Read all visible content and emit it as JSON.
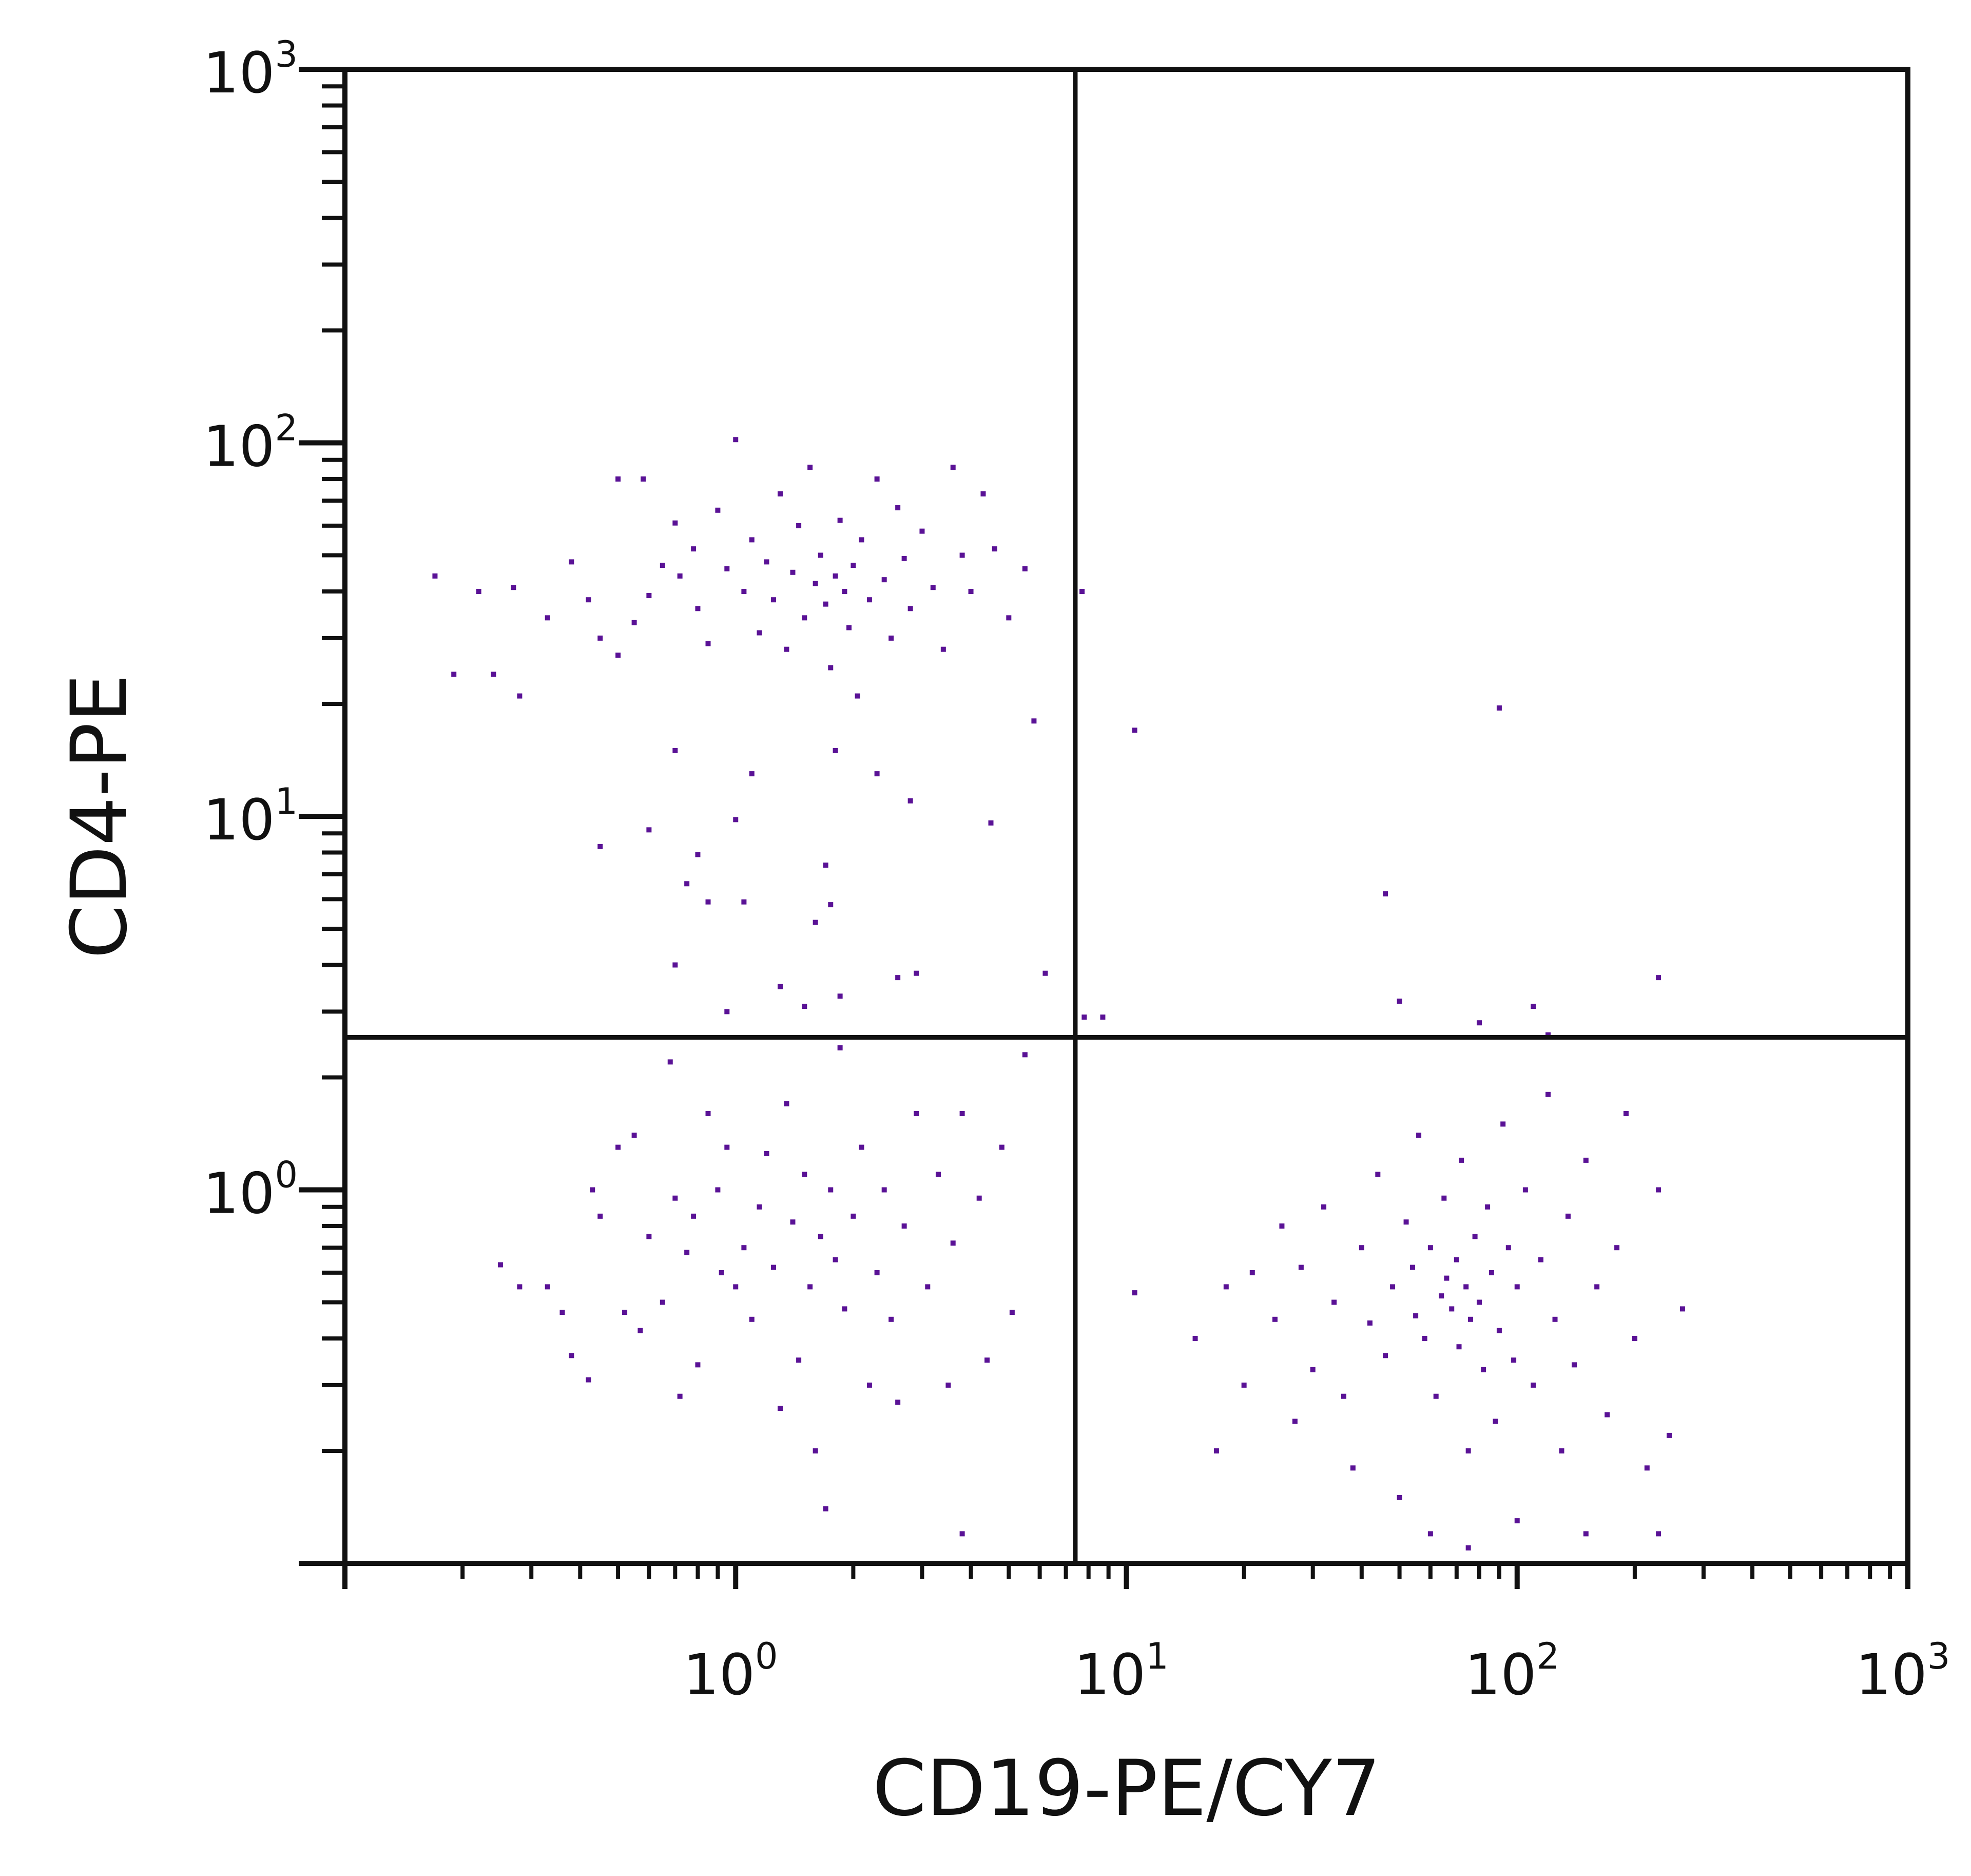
{
  "chart_data": {
    "type": "scatter",
    "title": "",
    "xlabel": "CD19-PE/CY7",
    "ylabel": "CD4-PE",
    "xscale": "log",
    "yscale": "log",
    "xlim": [
      0.1,
      1000
    ],
    "ylim": [
      0.1,
      1000
    ],
    "xticks": [
      {
        "base": "10",
        "exp": "0",
        "value": 1
      },
      {
        "base": "10",
        "exp": "1",
        "value": 10
      },
      {
        "base": "10",
        "exp": "2",
        "value": 100
      },
      {
        "base": "10",
        "exp": "3",
        "value": 1000
      }
    ],
    "yticks": [
      {
        "base": "10",
        "exp": "0",
        "value": 1
      },
      {
        "base": "10",
        "exp": "1",
        "value": 10
      },
      {
        "base": "10",
        "exp": "2",
        "value": 100
      },
      {
        "base": "10",
        "exp": "3",
        "value": 1000
      }
    ],
    "grid": false,
    "quadrant_gates": {
      "x": 7.4,
      "y": 2.56
    },
    "point_color": "#5a1296",
    "points": [
      [
        0.1,
        33
      ],
      [
        0.17,
        44
      ],
      [
        0.22,
        40
      ],
      [
        0.27,
        41
      ],
      [
        0.19,
        24
      ],
      [
        0.24,
        24
      ],
      [
        0.28,
        21
      ],
      [
        0.33,
        34
      ],
      [
        0.38,
        48
      ],
      [
        0.42,
        38
      ],
      [
        0.45,
        30
      ],
      [
        0.5,
        27
      ],
      [
        0.5,
        80
      ],
      [
        0.58,
        80
      ],
      [
        0.55,
        33
      ],
      [
        0.6,
        39
      ],
      [
        0.65,
        47
      ],
      [
        0.7,
        61
      ],
      [
        0.72,
        44
      ],
      [
        0.78,
        52
      ],
      [
        0.8,
        36
      ],
      [
        0.85,
        29
      ],
      [
        0.9,
        66
      ],
      [
        0.95,
        46
      ],
      [
        1.0,
        102
      ],
      [
        1.05,
        40
      ],
      [
        1.1,
        55
      ],
      [
        1.15,
        31
      ],
      [
        1.2,
        48
      ],
      [
        1.25,
        38
      ],
      [
        1.3,
        73
      ],
      [
        1.35,
        28
      ],
      [
        1.4,
        45
      ],
      [
        1.45,
        60
      ],
      [
        1.5,
        34
      ],
      [
        1.55,
        86
      ],
      [
        1.6,
        42
      ],
      [
        1.65,
        50
      ],
      [
        1.7,
        37
      ],
      [
        1.75,
        25
      ],
      [
        1.8,
        44
      ],
      [
        1.85,
        62
      ],
      [
        1.9,
        40
      ],
      [
        1.95,
        32
      ],
      [
        2.0,
        47
      ],
      [
        2.05,
        21
      ],
      [
        2.1,
        55
      ],
      [
        2.2,
        38
      ],
      [
        2.3,
        80
      ],
      [
        2.4,
        43
      ],
      [
        2.5,
        30
      ],
      [
        2.6,
        67
      ],
      [
        2.7,
        49
      ],
      [
        2.8,
        36
      ],
      [
        3.0,
        58
      ],
      [
        3.2,
        41
      ],
      [
        3.4,
        28
      ],
      [
        3.6,
        86
      ],
      [
        3.8,
        50
      ],
      [
        4.0,
        40
      ],
      [
        4.3,
        73
      ],
      [
        4.6,
        52
      ],
      [
        5.0,
        34
      ],
      [
        5.5,
        46
      ],
      [
        5.8,
        18
      ],
      [
        0.7,
        15
      ],
      [
        1.1,
        13
      ],
      [
        1.8,
        15
      ],
      [
        2.3,
        13
      ],
      [
        2.8,
        11
      ],
      [
        4.5,
        9.6
      ],
      [
        1.0,
        9.8
      ],
      [
        0.45,
        8.3
      ],
      [
        0.6,
        9.2
      ],
      [
        0.8,
        7.9
      ],
      [
        0.75,
        6.6
      ],
      [
        1.7,
        7.4
      ],
      [
        1.75,
        5.8
      ],
      [
        1.6,
        5.2
      ],
      [
        0.85,
        5.9
      ],
      [
        1.05,
        5.9
      ],
      [
        0.7,
        4.0
      ],
      [
        1.3,
        3.5
      ],
      [
        1.5,
        3.1
      ],
      [
        0.95,
        3.0
      ],
      [
        1.85,
        3.3
      ],
      [
        2.6,
        3.7
      ],
      [
        2.9,
        3.8
      ],
      [
        6.2,
        3.8
      ],
      [
        7.7,
        40
      ],
      [
        10.5,
        17
      ],
      [
        90,
        19.5
      ],
      [
        46,
        6.2
      ],
      [
        230,
        3.7
      ],
      [
        7.8,
        2.9
      ],
      [
        8.7,
        2.9
      ],
      [
        50,
        3.2
      ],
      [
        80,
        2.8
      ],
      [
        110,
        3.1
      ],
      [
        120,
        2.6
      ],
      [
        0.25,
        0.63
      ],
      [
        0.28,
        0.55
      ],
      [
        0.33,
        0.55
      ],
      [
        0.36,
        0.47
      ],
      [
        0.38,
        0.36
      ],
      [
        0.42,
        0.31
      ],
      [
        0.43,
        1.0
      ],
      [
        0.45,
        0.85
      ],
      [
        0.5,
        1.3
      ],
      [
        0.52,
        0.47
      ],
      [
        0.55,
        1.4
      ],
      [
        0.57,
        0.42
      ],
      [
        0.6,
        0.75
      ],
      [
        0.65,
        0.5
      ],
      [
        0.68,
        2.2
      ],
      [
        0.7,
        0.95
      ],
      [
        0.72,
        0.28
      ],
      [
        0.75,
        0.68
      ],
      [
        0.78,
        0.85
      ],
      [
        0.8,
        0.34
      ],
      [
        0.85,
        1.6
      ],
      [
        0.9,
        1.0
      ],
      [
        0.92,
        0.6
      ],
      [
        0.95,
        1.3
      ],
      [
        1.0,
        0.55
      ],
      [
        1.05,
        0.7
      ],
      [
        1.1,
        0.45
      ],
      [
        1.15,
        0.9
      ],
      [
        1.2,
        1.25
      ],
      [
        1.25,
        0.62
      ],
      [
        1.3,
        0.26
      ],
      [
        1.35,
        1.7
      ],
      [
        1.4,
        0.82
      ],
      [
        1.45,
        0.35
      ],
      [
        1.5,
        1.1
      ],
      [
        1.55,
        0.55
      ],
      [
        1.6,
        0.2
      ],
      [
        1.65,
        0.75
      ],
      [
        1.7,
        0.14
      ],
      [
        1.75,
        1.0
      ],
      [
        1.8,
        0.65
      ],
      [
        1.85,
        2.4
      ],
      [
        1.9,
        0.48
      ],
      [
        2.0,
        0.85
      ],
      [
        2.1,
        1.3
      ],
      [
        2.2,
        0.3
      ],
      [
        2.3,
        0.6
      ],
      [
        2.4,
        1.0
      ],
      [
        2.5,
        0.45
      ],
      [
        2.6,
        0.27
      ],
      [
        2.7,
        0.8
      ],
      [
        2.9,
        1.6
      ],
      [
        3.1,
        0.55
      ],
      [
        3.3,
        1.1
      ],
      [
        3.5,
        0.3
      ],
      [
        3.6,
        0.72
      ],
      [
        3.8,
        1.6
      ],
      [
        4.2,
        0.95
      ],
      [
        4.4,
        0.35
      ],
      [
        4.8,
        1.3
      ],
      [
        5.1,
        0.47
      ],
      [
        5.5,
        2.3
      ],
      [
        3.8,
        0.12
      ],
      [
        10.5,
        0.53
      ],
      [
        15,
        0.4
      ],
      [
        17,
        0.2
      ],
      [
        18,
        0.55
      ],
      [
        20,
        0.3
      ],
      [
        21,
        0.6
      ],
      [
        24,
        0.45
      ],
      [
        25,
        0.8
      ],
      [
        27,
        0.24
      ],
      [
        28,
        0.62
      ],
      [
        30,
        0.33
      ],
      [
        32,
        0.9
      ],
      [
        34,
        0.5
      ],
      [
        36,
        0.28
      ],
      [
        38,
        0.18
      ],
      [
        40,
        0.7
      ],
      [
        42,
        0.44
      ],
      [
        44,
        1.1
      ],
      [
        46,
        0.36
      ],
      [
        48,
        0.55
      ],
      [
        50,
        0.15
      ],
      [
        52,
        0.82
      ],
      [
        54,
        0.62
      ],
      [
        55,
        0.46
      ],
      [
        56,
        1.4
      ],
      [
        58,
        0.4
      ],
      [
        60,
        0.7
      ],
      [
        62,
        0.28
      ],
      [
        64,
        0.52
      ],
      [
        65,
        0.95
      ],
      [
        66,
        0.58
      ],
      [
        68,
        0.48
      ],
      [
        70,
        0.65
      ],
      [
        71,
        0.38
      ],
      [
        72,
        1.2
      ],
      [
        74,
        0.55
      ],
      [
        75,
        0.2
      ],
      [
        76,
        0.45
      ],
      [
        78,
        0.75
      ],
      [
        80,
        0.5
      ],
      [
        82,
        0.33
      ],
      [
        84,
        0.9
      ],
      [
        86,
        0.6
      ],
      [
        88,
        0.24
      ],
      [
        90,
        0.42
      ],
      [
        92,
        1.5
      ],
      [
        95,
        0.7
      ],
      [
        98,
        0.35
      ],
      [
        100,
        0.55
      ],
      [
        105,
        1.0
      ],
      [
        110,
        0.3
      ],
      [
        115,
        0.65
      ],
      [
        120,
        1.8
      ],
      [
        125,
        0.45
      ],
      [
        130,
        0.2
      ],
      [
        135,
        0.85
      ],
      [
        140,
        0.34
      ],
      [
        150,
        1.2
      ],
      [
        160,
        0.55
      ],
      [
        170,
        0.25
      ],
      [
        180,
        0.7
      ],
      [
        190,
        1.6
      ],
      [
        200,
        0.4
      ],
      [
        215,
        0.18
      ],
      [
        230,
        1.0
      ],
      [
        245,
        0.22
      ],
      [
        265,
        0.48
      ],
      [
        60,
        0.12
      ],
      [
        75,
        0.11
      ],
      [
        100,
        0.13
      ],
      [
        150,
        0.12
      ],
      [
        230,
        0.12
      ]
    ]
  }
}
